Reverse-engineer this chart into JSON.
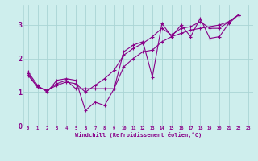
{
  "xlabel": "Windchill (Refroidissement éolien,°C)",
  "bg_color": "#ceeeed",
  "line_color": "#880088",
  "grid_color": "#aad4d4",
  "xlim": [
    -0.5,
    23.5
  ],
  "ylim": [
    0,
    3.6
  ],
  "xticks": [
    0,
    1,
    2,
    3,
    4,
    5,
    6,
    7,
    8,
    9,
    10,
    11,
    12,
    13,
    14,
    15,
    16,
    17,
    18,
    19,
    20,
    21,
    22,
    23
  ],
  "yticks": [
    0,
    1,
    2,
    3
  ],
  "series": [
    [
      1.6,
      1.2,
      1.0,
      1.35,
      1.4,
      1.35,
      0.45,
      0.7,
      0.6,
      1.1,
      2.2,
      2.4,
      2.5,
      1.45,
      3.05,
      2.65,
      3.0,
      2.65,
      3.2,
      2.6,
      2.65,
      3.05,
      3.3
    ],
    [
      1.55,
      1.15,
      1.05,
      1.25,
      1.35,
      1.1,
      1.1,
      1.1,
      1.1,
      1.1,
      1.75,
      2.0,
      2.2,
      2.25,
      2.5,
      2.65,
      2.75,
      2.85,
      2.9,
      2.95,
      3.0,
      3.1,
      3.3
    ],
    [
      1.5,
      1.15,
      1.05,
      1.2,
      1.3,
      1.25,
      1.0,
      1.2,
      1.4,
      1.65,
      2.1,
      2.3,
      2.45,
      2.65,
      2.9,
      2.7,
      2.9,
      2.95,
      3.1,
      2.9,
      2.9,
      3.1,
      3.3
    ]
  ],
  "series_x": [
    [
      0,
      1,
      2,
      3,
      4,
      5,
      6,
      7,
      8,
      9,
      10,
      11,
      12,
      13,
      14,
      15,
      16,
      17,
      18,
      19,
      20,
      21,
      22
    ],
    [
      0,
      1,
      2,
      3,
      4,
      5,
      6,
      7,
      8,
      9,
      10,
      11,
      12,
      13,
      14,
      15,
      16,
      17,
      18,
      19,
      20,
      21,
      22
    ],
    [
      0,
      1,
      2,
      3,
      4,
      5,
      6,
      7,
      8,
      9,
      10,
      11,
      12,
      13,
      14,
      15,
      16,
      17,
      18,
      19,
      20,
      21,
      22
    ]
  ]
}
